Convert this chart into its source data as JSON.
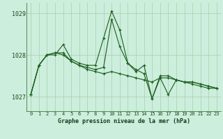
{
  "xlabel": "Graphe pression niveau de la mer (hPa)",
  "bg_color": "#cceedd",
  "grid_color_v": "#aaccaa",
  "grid_color_h": "#aaccaa",
  "line_color": "#1a5c1a",
  "ylim": [
    1026.65,
    1029.25
  ],
  "xlim": [
    -0.5,
    23.5
  ],
  "yticks": [
    1027,
    1028,
    1029
  ],
  "xticks": [
    0,
    1,
    2,
    3,
    4,
    5,
    6,
    7,
    8,
    9,
    10,
    11,
    12,
    13,
    14,
    15,
    16,
    17,
    18,
    19,
    20,
    21,
    22,
    23
  ],
  "series": [
    [
      1027.05,
      1027.75,
      1028.0,
      1028.0,
      1028.25,
      1027.9,
      1027.8,
      1027.75,
      1027.75,
      1028.4,
      1029.05,
      1028.6,
      1027.8,
      1027.6,
      1027.75,
      1026.95,
      1027.45,
      1027.05,
      1027.4,
      1027.35,
      1027.35,
      1027.3,
      1027.25,
      1027.2
    ],
    [
      1027.05,
      1027.75,
      1028.0,
      1028.05,
      1028.05,
      1027.85,
      1027.75,
      1027.7,
      1027.65,
      1027.7,
      1028.85,
      1028.2,
      1027.8,
      1027.65,
      1027.55,
      1026.95,
      1027.5,
      1027.5,
      1027.4,
      1027.35,
      1027.35,
      1027.3,
      1027.25,
      1027.2
    ],
    [
      1027.05,
      1027.75,
      1028.0,
      1028.05,
      1028.0,
      1027.85,
      1027.75,
      1027.65,
      1027.6,
      1027.55,
      1027.6,
      1027.55,
      1027.5,
      1027.45,
      1027.4,
      1027.35,
      1027.45,
      1027.45,
      1027.4,
      1027.35,
      1027.3,
      1027.25,
      1027.2,
      1027.2
    ]
  ]
}
